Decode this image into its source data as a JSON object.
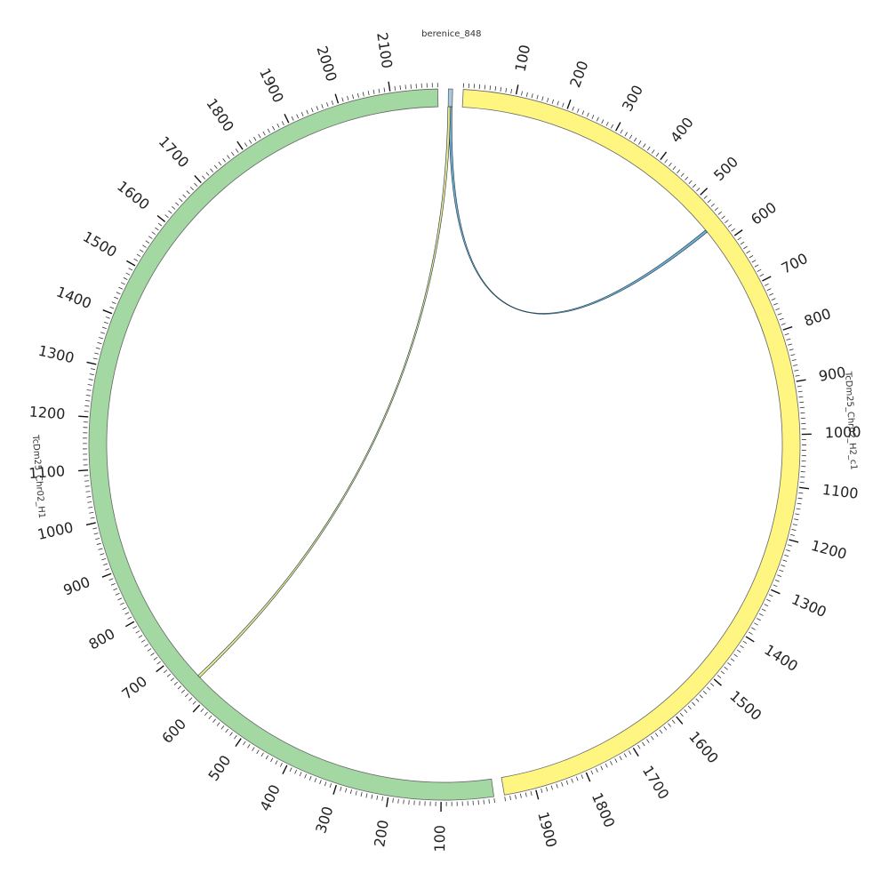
{
  "diagram": {
    "segments": [
      {
        "id": "berenice",
        "name": "berenice_848",
        "length": 8,
        "color": "#a6c8e0",
        "show_ticks": false
      },
      {
        "id": "h2",
        "name": "TcDm25_Chr02_H2_c1",
        "length": 1960,
        "color": "#fff581",
        "show_ticks": true,
        "tick_labels": [
          "100",
          "200",
          "300",
          "400",
          "500",
          "600",
          "700",
          "800",
          "900",
          "1000",
          "1100",
          "1200",
          "1300",
          "1400",
          "1500",
          "1600",
          "1700",
          "1800",
          "1900"
        ]
      },
      {
        "id": "h1",
        "name": "TcDm25_Chr02_H1",
        "length": 2190,
        "color": "#a3d8a3",
        "show_ticks": true,
        "tick_labels": [
          "100",
          "200",
          "300",
          "400",
          "500",
          "600",
          "700",
          "800",
          "900",
          "1000",
          "1100",
          "1200",
          "1300",
          "1400",
          "1500",
          "1600",
          "1700",
          "1800",
          "1900",
          "2000",
          "2100"
        ]
      }
    ],
    "links": [
      {
        "id": "link-berenice-h2",
        "from": "berenice_848",
        "from_pos": 5,
        "to": "TcDm25_Chr02_H2_c1",
        "to_pos": 560,
        "color": "#5b9ec9"
      },
      {
        "id": "link-berenice-h1",
        "from": "berenice_848",
        "from_pos": 2,
        "to": "TcDm25_Chr02_H1",
        "to_pos": 640,
        "color": "#e8e07a"
      }
    ]
  }
}
